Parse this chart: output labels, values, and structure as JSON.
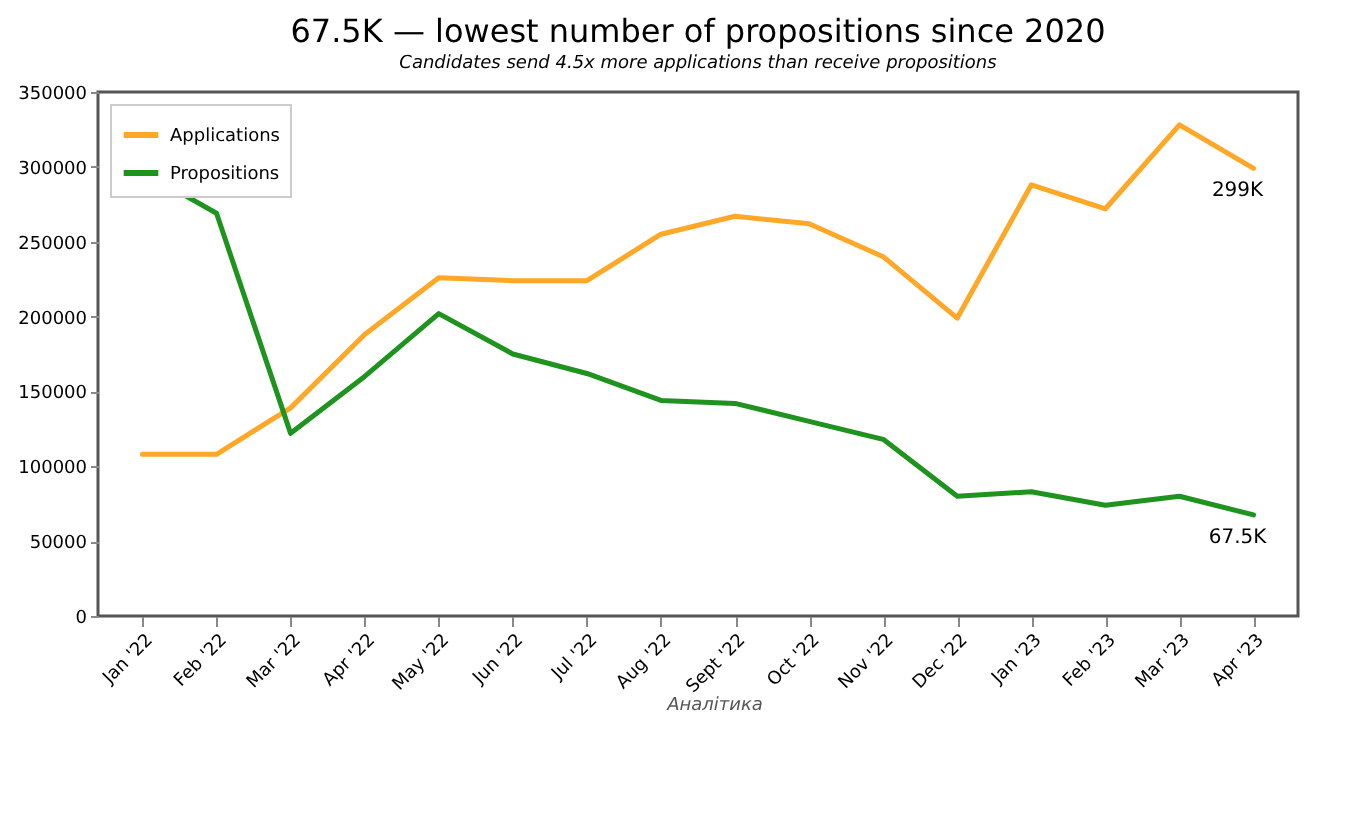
{
  "chart_data": {
    "type": "line",
    "title": "67.5K — lowest number of propositions since 2020",
    "subtitle": "Candidates send 4.5x more applications than receive propositions",
    "categories": [
      "Jan '22",
      "Feb '22",
      "Mar '22",
      "Apr '22",
      "May '22",
      "Jun '22",
      "Jul '22",
      "Aug '22",
      "Sept '22",
      "Oct '22",
      "Nov '22",
      "Dec '22",
      "Jan '23",
      "Feb '23",
      "Mar '23",
      "Apr '23"
    ],
    "series": [
      {
        "name": "Applications",
        "color": "#ffa726",
        "values": [
          108000,
          108000,
          139000,
          188000,
          226000,
          224000,
          224000,
          255000,
          267000,
          262000,
          240000,
          199000,
          288000,
          272000,
          328000,
          299000
        ]
      },
      {
        "name": "Propositions",
        "color": "#1e931e",
        "values": [
          297000,
          269000,
          122000,
          160000,
          202000,
          175000,
          162000,
          144000,
          142000,
          130000,
          118000,
          80000,
          83000,
          74000,
          80000,
          67500
        ]
      }
    ],
    "ylim": [
      0,
      350000
    ],
    "yticks": [
      0,
      50000,
      100000,
      150000,
      200000,
      250000,
      300000,
      350000
    ],
    "legend": "top left",
    "grid": false,
    "line_style": "solid",
    "marker": "none",
    "annotations": [
      {
        "text": "299K",
        "x": "Apr '23",
        "y": 299000
      },
      {
        "text": "67.5K",
        "x": "Apr '23",
        "y": 67500
      },
      "Аналітика"
    ]
  }
}
